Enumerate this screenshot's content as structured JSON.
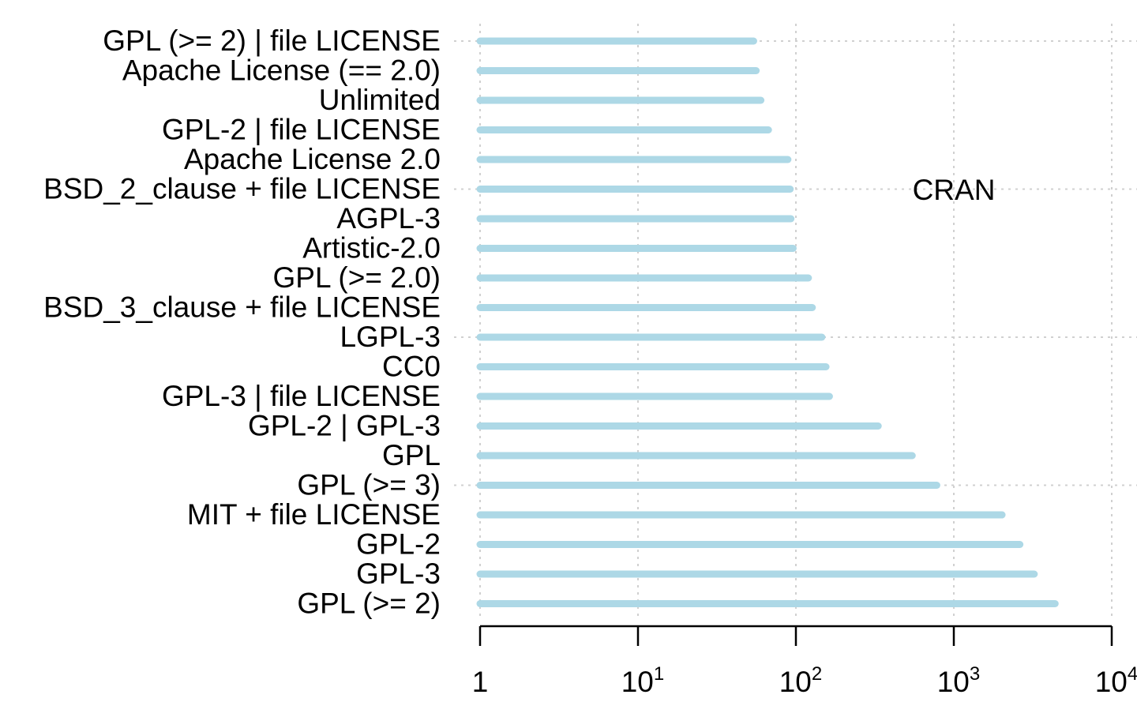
{
  "chart_data": {
    "type": "bar",
    "orientation": "horizontal",
    "scale": "log10",
    "annotation": "CRAN",
    "categories": [
      "GPL (>= 2) | file LICENSE",
      "Apache License (== 2.0)",
      "Unlimited",
      "GPL-2 | file LICENSE",
      "Apache License 2.0",
      "BSD_2_clause + file LICENSE",
      "AGPL-3",
      "Artistic-2.0",
      "GPL (>= 2.0)",
      "BSD_3_clause + file LICENSE",
      "LGPL-3",
      "CC0",
      "GPL-3 | file LICENSE",
      "GPL-2 | GPL-3",
      "GPL",
      "GPL (>= 3)",
      "MIT + file LICENSE",
      "GPL-2",
      "GPL-3",
      "GPL (>= 2)"
    ],
    "values": [
      54,
      56,
      60,
      67,
      89,
      92,
      93,
      96,
      120,
      127,
      146,
      155,
      163,
      332,
      545,
      780,
      2020,
      2620,
      3230,
      4380
    ],
    "xlim": [
      1,
      10000
    ],
    "x_ticks": [
      {
        "value": 1,
        "base": "1",
        "exp": ""
      },
      {
        "value": 10,
        "base": "10",
        "exp": "1"
      },
      {
        "value": 100,
        "base": "10",
        "exp": "2"
      },
      {
        "value": 1000,
        "base": "10",
        "exp": "3"
      },
      {
        "value": 10000,
        "base": "10",
        "exp": "4"
      }
    ],
    "grid": true,
    "bar_color": "#add8e6"
  }
}
